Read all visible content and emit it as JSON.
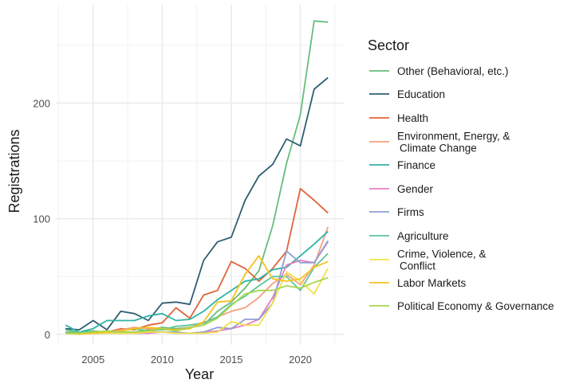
{
  "chart_data": {
    "type": "line",
    "xlabel": "Year",
    "ylabel": "Registrations",
    "xlim": [
      2002.3,
      2023.2
    ],
    "ylim": [
      -9,
      285
    ],
    "x_ticks": [
      2005,
      2010,
      2015,
      2020
    ],
    "y_ticks": [
      0,
      100,
      200
    ],
    "grid": true,
    "legend": {
      "title": "Sector",
      "placement": "right"
    },
    "series": [
      {
        "name": "Other (Behavioral, etc.)",
        "color": "#66bd7a",
        "x": [
          2003,
          2004,
          2005,
          2006,
          2007,
          2008,
          2009,
          2010,
          2011,
          2012,
          2013,
          2014,
          2015,
          2016,
          2017,
          2018,
          2019,
          2020,
          2021,
          2022
        ],
        "values": [
          2,
          2,
          3,
          2,
          2,
          2,
          4,
          6,
          5,
          6,
          8,
          20,
          28,
          40,
          55,
          94,
          148,
          190,
          271,
          270
        ]
      },
      {
        "name": "Education",
        "color": "#2f5f73",
        "x": [
          2003,
          2004,
          2005,
          2006,
          2007,
          2008,
          2009,
          2010,
          2011,
          2012,
          2013,
          2014,
          2015,
          2016,
          2017,
          2018,
          2019,
          2020,
          2021,
          2022
        ],
        "values": [
          5,
          4,
          12,
          4,
          20,
          18,
          12,
          27,
          28,
          26,
          64,
          80,
          84,
          116,
          137,
          147,
          169,
          163,
          212,
          222
        ]
      },
      {
        "name": "Health",
        "color": "#e0643a",
        "x": [
          2003,
          2004,
          2005,
          2006,
          2007,
          2008,
          2009,
          2010,
          2011,
          2012,
          2013,
          2014,
          2015,
          2016,
          2017,
          2018,
          2019,
          2020,
          2021,
          2022
        ],
        "values": [
          1,
          1,
          2,
          2,
          5,
          4,
          8,
          10,
          23,
          14,
          34,
          38,
          63,
          57,
          46,
          57,
          72,
          126,
          116,
          105
        ]
      },
      {
        "name": "Environment, Energy, &\nClimate Change",
        "color": "#f4a07e",
        "x": [
          2003,
          2004,
          2005,
          2006,
          2007,
          2008,
          2009,
          2010,
          2011,
          2012,
          2013,
          2014,
          2015,
          2016,
          2017,
          2018,
          2019,
          2020,
          2021,
          2022
        ],
        "values": [
          1,
          1,
          1,
          2,
          4,
          6,
          5,
          4,
          4,
          6,
          10,
          15,
          20,
          23,
          32,
          44,
          52,
          43,
          60,
          93
        ]
      },
      {
        "name": "Finance",
        "color": "#2fb3a3",
        "x": [
          2003,
          2004,
          2005,
          2006,
          2007,
          2008,
          2009,
          2010,
          2011,
          2012,
          2013,
          2014,
          2015,
          2016,
          2017,
          2018,
          2019,
          2020,
          2021,
          2022
        ],
        "values": [
          8,
          2,
          5,
          12,
          12,
          12,
          16,
          18,
          12,
          13,
          20,
          30,
          38,
          46,
          48,
          56,
          58,
          68,
          78,
          89
        ]
      },
      {
        "name": "Gender",
        "color": "#e57fc4",
        "x": [
          2003,
          2004,
          2005,
          2006,
          2007,
          2008,
          2009,
          2010,
          2011,
          2012,
          2013,
          2014,
          2015,
          2016,
          2017,
          2018,
          2019,
          2020,
          2021,
          2022
        ],
        "values": [
          1,
          0,
          1,
          1,
          1,
          1,
          1,
          2,
          1,
          1,
          2,
          3,
          5,
          8,
          13,
          32,
          60,
          64,
          62,
          80
        ]
      },
      {
        "name": "Firms",
        "color": "#8f9fd0",
        "x": [
          2003,
          2004,
          2005,
          2006,
          2007,
          2008,
          2009,
          2010,
          2011,
          2012,
          2013,
          2014,
          2015,
          2016,
          2017,
          2018,
          2019,
          2020,
          2021,
          2022
        ],
        "values": [
          1,
          1,
          1,
          1,
          2,
          1,
          2,
          2,
          2,
          1,
          2,
          6,
          5,
          13,
          13,
          27,
          72,
          62,
          62,
          81
        ]
      },
      {
        "name": "Agriculture",
        "color": "#5ec49a",
        "x": [
          2003,
          2004,
          2005,
          2006,
          2007,
          2008,
          2009,
          2010,
          2011,
          2012,
          2013,
          2014,
          2015,
          2016,
          2017,
          2018,
          2019,
          2020,
          2021,
          2022
        ],
        "values": [
          4,
          2,
          2,
          2,
          3,
          5,
          3,
          4,
          7,
          8,
          10,
          15,
          26,
          33,
          42,
          50,
          50,
          38,
          58,
          70
        ]
      },
      {
        "name": "Crime, Violence, &\nConflict",
        "color": "#f2e04a",
        "x": [
          2003,
          2004,
          2005,
          2006,
          2007,
          2008,
          2009,
          2010,
          2011,
          2012,
          2013,
          2014,
          2015,
          2016,
          2017,
          2018,
          2019,
          2020,
          2021,
          2022
        ],
        "values": [
          1,
          0,
          1,
          1,
          1,
          1,
          2,
          2,
          1,
          1,
          1,
          2,
          11,
          8,
          8,
          27,
          54,
          46,
          35,
          57
        ]
      },
      {
        "name": "Labor Markets",
        "color": "#f6c21b",
        "x": [
          2003,
          2004,
          2005,
          2006,
          2007,
          2008,
          2009,
          2010,
          2011,
          2012,
          2013,
          2014,
          2015,
          2016,
          2017,
          2018,
          2019,
          2020,
          2021,
          2022
        ],
        "values": [
          1,
          1,
          1,
          2,
          3,
          5,
          6,
          5,
          4,
          5,
          11,
          28,
          29,
          52,
          68,
          48,
          46,
          48,
          58,
          63
        ]
      },
      {
        "name": "Political Economy & Governance",
        "color": "#a8d64e",
        "x": [
          2003,
          2004,
          2005,
          2006,
          2007,
          2008,
          2009,
          2010,
          2011,
          2012,
          2013,
          2014,
          2015,
          2016,
          2017,
          2018,
          2019,
          2020,
          2021,
          2022
        ],
        "values": [
          1,
          1,
          2,
          3,
          2,
          2,
          3,
          5,
          3,
          6,
          8,
          14,
          25,
          35,
          38,
          38,
          42,
          40,
          45,
          49
        ]
      }
    ]
  }
}
